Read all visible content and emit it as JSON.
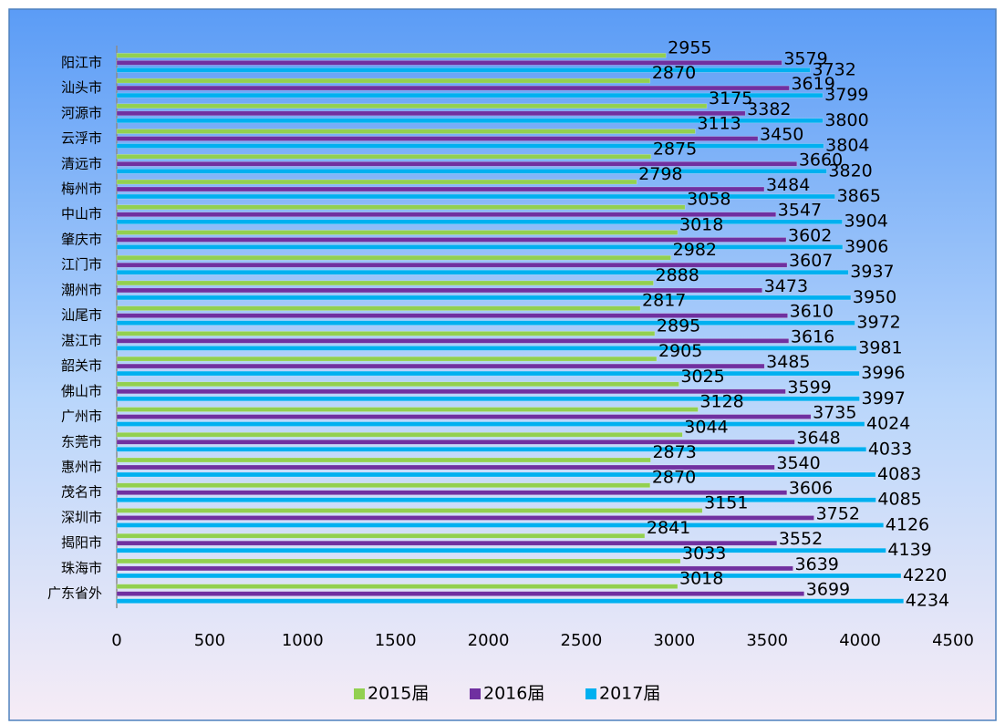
{
  "chart_data": {
    "type": "bar",
    "orientation": "horizontal",
    "categories": [
      "阳江市",
      "汕头市",
      "河源市",
      "云浮市",
      "清远市",
      "梅州市",
      "中山市",
      "肇庆市",
      "江门市",
      "潮州市",
      "汕尾市",
      "湛江市",
      "韶关市",
      "佛山市",
      "广州市",
      "东莞市",
      "惠州市",
      "茂名市",
      "深圳市",
      "揭阳市",
      "珠海市",
      "广东省外"
    ],
    "series": [
      {
        "name": "2015届",
        "color": "#92d050",
        "values": [
          2955,
          2870,
          3175,
          3113,
          2875,
          2798,
          3058,
          3018,
          2982,
          2888,
          2817,
          2895,
          2905,
          3025,
          3128,
          3044,
          2873,
          2870,
          3151,
          2841,
          3033,
          3018
        ]
      },
      {
        "name": "2016届",
        "color": "#7030a0",
        "values": [
          3579,
          3619,
          3382,
          3450,
          3660,
          3484,
          3547,
          3602,
          3607,
          3473,
          3610,
          3616,
          3485,
          3599,
          3735,
          3648,
          3540,
          3606,
          3752,
          3552,
          3639,
          3699
        ]
      },
      {
        "name": "2017届",
        "color": "#00b0f0",
        "values": [
          3732,
          3799,
          3800,
          3804,
          3820,
          3865,
          3904,
          3906,
          3937,
          3950,
          3972,
          3981,
          3996,
          3997,
          4024,
          4033,
          4083,
          4085,
          4126,
          4139,
          4220,
          4234
        ]
      }
    ],
    "xlim": [
      0,
      4500
    ],
    "xticks": [
      0,
      500,
      1000,
      1500,
      2000,
      2500,
      3000,
      3500,
      4000,
      4500
    ],
    "legend": "bottom"
  }
}
